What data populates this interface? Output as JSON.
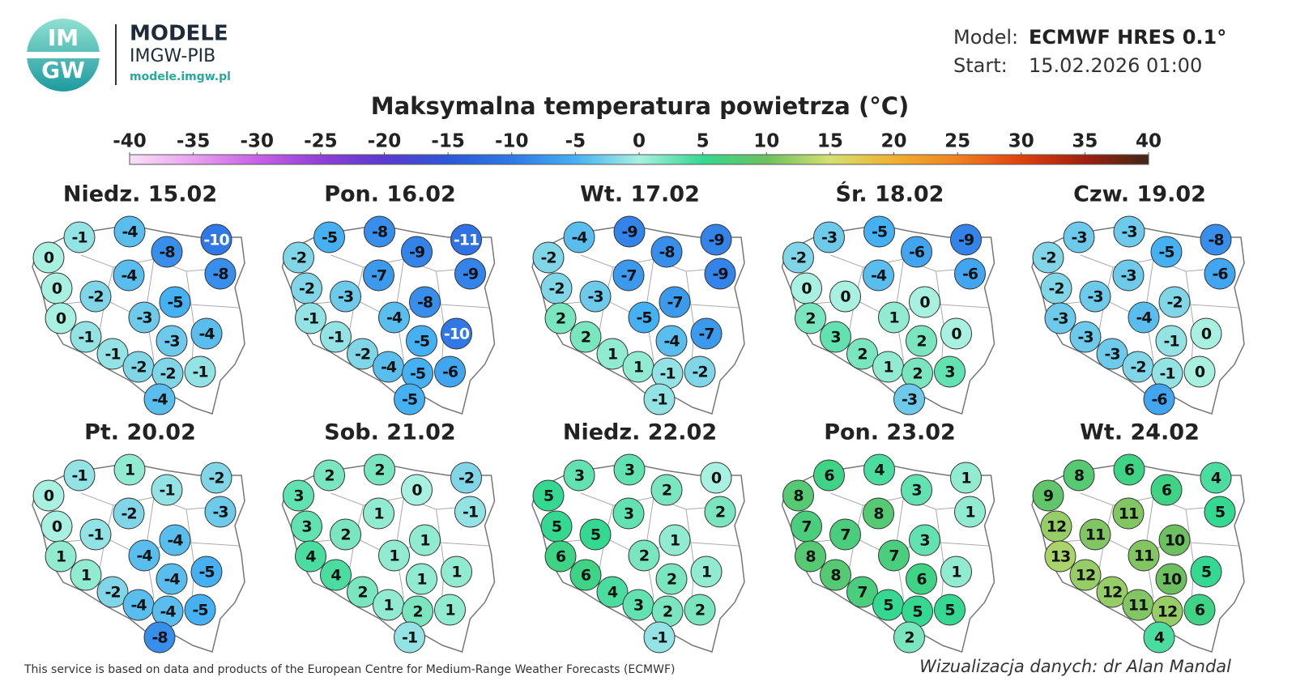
{
  "header": {
    "logo_top": "IM",
    "logo_bottom": "GW",
    "brand": "MODELE",
    "org": "IMGW-PIB",
    "url": "modele.imgw.pl",
    "model_label": "Model:",
    "model": "ECMWF HRES 0.1°",
    "start_label": "Start:",
    "start": "15.02.2026 01:00"
  },
  "legend": {
    "title": "Maksymalna temperatura powietrza (°C)",
    "ticks": [
      -40,
      -35,
      -30,
      -25,
      -20,
      -15,
      -10,
      -5,
      0,
      5,
      10,
      15,
      20,
      25,
      30,
      35,
      40
    ],
    "colors": [
      "#f8e0f8",
      "#e8a0f0",
      "#c860e8",
      "#9040d8",
      "#5a3ad0",
      "#2c58d8",
      "#2f78e6",
      "#45b0f2",
      "#a8f0e0",
      "#34d890",
      "#6cc060",
      "#d4e070",
      "#f0b030",
      "#f08020",
      "#e04010",
      "#a02010",
      "#402818"
    ]
  },
  "maps": [
    {
      "title": "Niedz. 15.02",
      "values": [
        0,
        -1,
        -4,
        -8,
        -10,
        -8,
        0,
        -4,
        -2,
        -5,
        0,
        -3,
        -1,
        -3,
        -4,
        -1,
        -2,
        -2,
        -1,
        -4
      ]
    },
    {
      "title": "Pon. 16.02",
      "values": [
        -2,
        -5,
        -8,
        -9,
        -11,
        -9,
        -2,
        -7,
        -3,
        -8,
        -1,
        -4,
        -1,
        -5,
        -10,
        -2,
        -4,
        -5,
        -6,
        -5
      ]
    },
    {
      "title": "Wt. 17.02",
      "values": [
        -2,
        -4,
        -9,
        -8,
        -9,
        -9,
        -2,
        -7,
        -3,
        -7,
        2,
        -5,
        2,
        -4,
        -7,
        1,
        1,
        -1,
        -2,
        -1
      ]
    },
    {
      "title": "Śr. 18.02",
      "values": [
        -2,
        -3,
        -5,
        -6,
        -9,
        -6,
        0,
        -4,
        0,
        0,
        2,
        1,
        3,
        2,
        0,
        2,
        1,
        2,
        3,
        -3
      ]
    },
    {
      "title": "Czw. 19.02",
      "values": [
        -2,
        -3,
        -3,
        -5,
        -8,
        -6,
        -2,
        -3,
        -3,
        -2,
        -3,
        -4,
        -3,
        -1,
        0,
        -3,
        -2,
        -1,
        0,
        -6
      ]
    },
    {
      "title": "Pt. 20.02",
      "values": [
        0,
        -1,
        1,
        -1,
        -2,
        -3,
        0,
        -2,
        -1,
        -4,
        1,
        -4,
        1,
        -4,
        -5,
        -2,
        -4,
        -4,
        -5,
        -8
      ]
    },
    {
      "title": "Sob. 21.02",
      "values": [
        3,
        2,
        2,
        0,
        -2,
        -1,
        3,
        1,
        2,
        1,
        4,
        1,
        4,
        1,
        1,
        2,
        1,
        2,
        1,
        -1
      ]
    },
    {
      "title": "Niedz. 22.02",
      "values": [
        5,
        3,
        3,
        2,
        0,
        2,
        5,
        3,
        5,
        1,
        6,
        2,
        6,
        2,
        1,
        4,
        3,
        2,
        2,
        -1
      ]
    },
    {
      "title": "Pon. 23.02",
      "values": [
        8,
        6,
        4,
        3,
        1,
        1,
        7,
        8,
        7,
        3,
        8,
        7,
        8,
        6,
        1,
        7,
        5,
        5,
        5,
        2
      ]
    },
    {
      "title": "Wt. 24.02",
      "values": [
        9,
        8,
        6,
        6,
        4,
        5,
        12,
        11,
        11,
        10,
        13,
        11,
        12,
        10,
        5,
        12,
        11,
        12,
        6,
        4
      ]
    }
  ],
  "footer": {
    "source": "This service is based on data and products of the European Centre for Medium-Range Weather Forecasts (ECMWF)",
    "credit": "Wizualizacja danych: dr Alan Mandal"
  }
}
